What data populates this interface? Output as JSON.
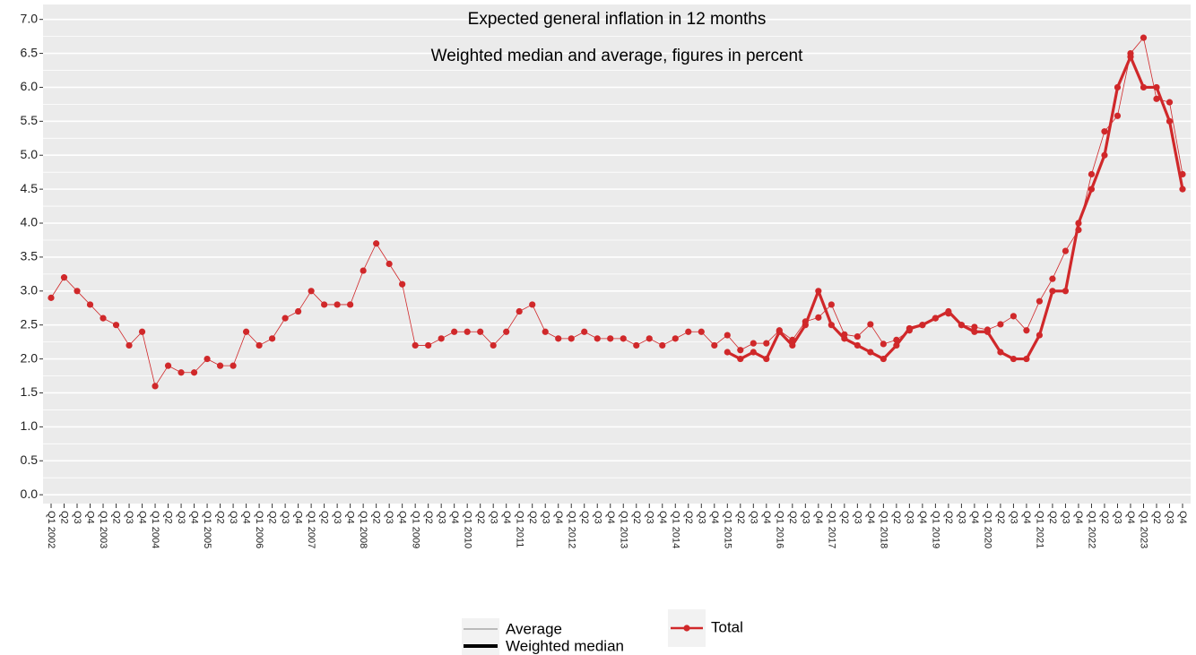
{
  "chart_data": {
    "type": "line",
    "title": "Expected general inflation in 12 months",
    "subtitle": "Weighted median and average, figures in percent",
    "categories": [
      "Q1 2002",
      "Q2",
      "Q3",
      "Q4",
      "Q1 2003",
      "Q2",
      "Q3",
      "Q4",
      "Q1 2004",
      "Q2",
      "Q3",
      "Q4",
      "Q1 2005",
      "Q2",
      "Q3",
      "Q4",
      "Q1 2006",
      "Q2",
      "Q3",
      "Q4",
      "Q1 2007",
      "Q2",
      "Q3",
      "Q4",
      "Q1 2008",
      "Q2",
      "Q3",
      "Q4",
      "Q1 2009",
      "Q2",
      "Q3",
      "Q4",
      "Q1 2010",
      "Q2",
      "Q3",
      "Q4",
      "Q1 2011",
      "Q2",
      "Q3",
      "Q4",
      "Q1 2012",
      "Q2",
      "Q3",
      "Q4",
      "Q1 2013",
      "Q2",
      "Q3",
      "Q4",
      "Q1 2014",
      "Q2",
      "Q3",
      "Q4",
      "Q1 2015",
      "Q2",
      "Q3",
      "Q4",
      "Q1 2016",
      "Q2",
      "Q3",
      "Q4",
      "Q1 2017",
      "Q2",
      "Q3",
      "Q4",
      "Q1 2018",
      "Q2",
      "Q3",
      "Q4",
      "Q1 2019",
      "Q2",
      "Q3",
      "Q4",
      "Q1 2020",
      "Q2",
      "Q3",
      "Q4",
      "Q1 2021",
      "Q2",
      "Q3",
      "Q4",
      "Q1 2022",
      "Q2",
      "Q3",
      "Q4",
      "Q1 2023",
      "Q2",
      "Q3",
      "Q4"
    ],
    "series": [
      {
        "name": "Average",
        "color": "#d0282a",
        "line_width": 0.8,
        "legend_color": "#999999",
        "legend_width": 1.2,
        "values": [
          2.9,
          3.2,
          3.0,
          2.8,
          2.6,
          2.5,
          2.2,
          2.4,
          1.6,
          1.9,
          1.8,
          1.8,
          2.0,
          1.9,
          1.9,
          2.4,
          2.2,
          2.3,
          2.6,
          2.7,
          3.0,
          2.8,
          2.8,
          2.8,
          3.3,
          3.7,
          3.4,
          3.1,
          2.2,
          2.2,
          2.3,
          2.4,
          2.4,
          2.4,
          2.2,
          2.4,
          2.7,
          2.8,
          2.4,
          2.3,
          2.3,
          2.4,
          2.3,
          2.3,
          2.3,
          2.2,
          2.3,
          2.2,
          2.3,
          2.4,
          2.4,
          2.2,
          2.35,
          2.13,
          2.23,
          2.23,
          2.42,
          2.28,
          2.55,
          2.61,
          2.8,
          2.36,
          2.33,
          2.51,
          2.22,
          2.28,
          2.42,
          2.5,
          2.6,
          2.67,
          2.5,
          2.47,
          2.43,
          2.51,
          2.63,
          2.42,
          2.85,
          3.18,
          3.59,
          3.9,
          4.72,
          5.35,
          5.58,
          6.5,
          6.73,
          5.83,
          5.78,
          4.72
        ]
      },
      {
        "name": "Weighted median",
        "color": "#d0282a",
        "line_width": 3.2,
        "legend_color": "#000000",
        "legend_width": 4,
        "values": [
          null,
          null,
          null,
          null,
          null,
          null,
          null,
          null,
          null,
          null,
          null,
          null,
          null,
          null,
          null,
          null,
          null,
          null,
          null,
          null,
          null,
          null,
          null,
          null,
          null,
          null,
          null,
          null,
          null,
          null,
          null,
          null,
          null,
          null,
          null,
          null,
          null,
          null,
          null,
          null,
          null,
          null,
          null,
          null,
          null,
          null,
          null,
          null,
          null,
          null,
          null,
          null,
          2.1,
          2.0,
          2.1,
          2.0,
          2.4,
          2.2,
          2.5,
          3.0,
          2.5,
          2.3,
          2.2,
          2.1,
          2.0,
          2.2,
          2.45,
          2.5,
          2.6,
          2.7,
          2.5,
          2.4,
          2.4,
          2.1,
          2.0,
          2.0,
          2.35,
          3.0,
          3.0,
          4.0,
          4.5,
          5.0,
          6.0,
          6.45,
          6.0,
          6.0,
          5.5,
          4.5
        ]
      }
    ],
    "color_legend": {
      "label": "Total",
      "color": "#d0282a"
    },
    "ylim": [
      -0.13,
      7.22
    ],
    "yticks": [
      {
        "value": 0,
        "label": "0.0"
      },
      {
        "value": 0.5,
        "label": "0.5"
      },
      {
        "value": 1,
        "label": "1.0"
      },
      {
        "value": 1.5,
        "label": "1.5"
      },
      {
        "value": 2,
        "label": "2.0"
      },
      {
        "value": 2.5,
        "label": "2.5"
      },
      {
        "value": 3,
        "label": "3.0"
      },
      {
        "value": 3.5,
        "label": "3.5"
      },
      {
        "value": 4,
        "label": "4.0"
      },
      {
        "value": 4.5,
        "label": "4.5"
      },
      {
        "value": 5,
        "label": "5.0"
      },
      {
        "value": 5.5,
        "label": "5.5"
      },
      {
        "value": 6,
        "label": "6.0"
      },
      {
        "value": 6.5,
        "label": "6.5"
      },
      {
        "value": 7,
        "label": "7.0"
      }
    ],
    "grid": true,
    "minor_grid": true
  }
}
